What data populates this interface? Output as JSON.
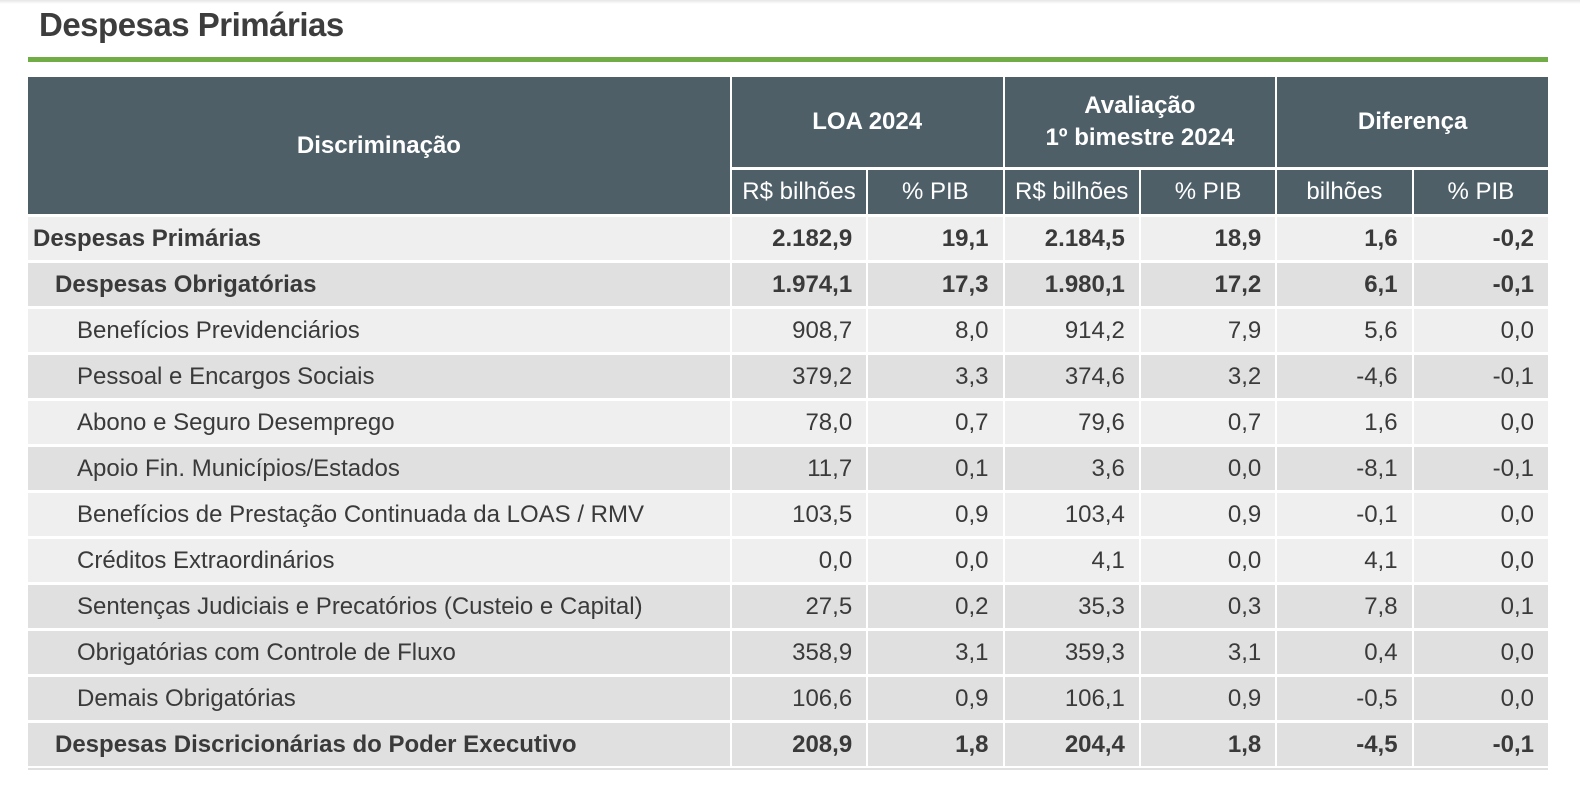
{
  "page": {
    "title": "Despesas Primárias",
    "accent_color": "#71ad47",
    "header_color": "#4e5f68"
  },
  "table": {
    "headers": {
      "discriminacao": "Discriminação",
      "loa": "LOA 2024",
      "avaliacao_line1": "Avaliação",
      "avaliacao_line2": "1º bimestre 2024",
      "diferenca": "Diferença",
      "sub": [
        "R$ bilhões",
        "% PIB",
        "R$ bilhões",
        "% PIB",
        "bilhões",
        "% PIB"
      ]
    },
    "rows": [
      {
        "label": "Despesas Primárias",
        "level": 0,
        "bold": true,
        "shade": "light",
        "values": [
          "2.182,9",
          "19,1",
          "2.184,5",
          "18,9",
          "1,6",
          "-0,2"
        ]
      },
      {
        "label": "Despesas Obrigatórias",
        "level": 1,
        "bold": true,
        "shade": "dark",
        "values": [
          "1.974,1",
          "17,3",
          "1.980,1",
          "17,2",
          "6,1",
          "-0,1"
        ]
      },
      {
        "label": "Benefícios Previdenciários",
        "level": 2,
        "bold": false,
        "shade": "light",
        "values": [
          "908,7",
          "8,0",
          "914,2",
          "7,9",
          "5,6",
          "0,0"
        ]
      },
      {
        "label": "Pessoal e Encargos Sociais",
        "level": 2,
        "bold": false,
        "shade": "dark",
        "values": [
          "379,2",
          "3,3",
          "374,6",
          "3,2",
          "-4,6",
          "-0,1"
        ]
      },
      {
        "label": "Abono e Seguro Desemprego",
        "level": 2,
        "bold": false,
        "shade": "light",
        "values": [
          "78,0",
          "0,7",
          "79,6",
          "0,7",
          "1,6",
          "0,0"
        ]
      },
      {
        "label": "Apoio Fin. Municípios/Estados",
        "level": 2,
        "bold": false,
        "shade": "dark",
        "values": [
          "11,7",
          "0,1",
          "3,6",
          "0,0",
          "-8,1",
          "-0,1"
        ]
      },
      {
        "label": "Benefícios de Prestação Continuada da LOAS / RMV",
        "level": 2,
        "bold": false,
        "shade": "light",
        "values": [
          "103,5",
          "0,9",
          "103,4",
          "0,9",
          "-0,1",
          "0,0"
        ]
      },
      {
        "label": "Créditos Extraordinários",
        "level": 2,
        "bold": false,
        "shade": "light",
        "values": [
          "0,0",
          "0,0",
          "4,1",
          "0,0",
          "4,1",
          "0,0"
        ]
      },
      {
        "label": "Sentenças Judiciais e Precatórios (Custeio e Capital)",
        "level": 2,
        "bold": false,
        "shade": "dark",
        "values": [
          "27,5",
          "0,2",
          "35,3",
          "0,3",
          "7,8",
          "0,1"
        ]
      },
      {
        "label": "Obrigatórias com Controle de Fluxo",
        "level": 2,
        "bold": false,
        "shade": "dark",
        "values": [
          "358,9",
          "3,1",
          "359,3",
          "3,1",
          "0,4",
          "0,0"
        ]
      },
      {
        "label": "Demais Obrigatórias",
        "level": 2,
        "bold": false,
        "shade": "dark",
        "values": [
          "106,6",
          "0,9",
          "106,1",
          "0,9",
          "-0,5",
          "0,0"
        ]
      },
      {
        "label": "Despesas Discricionárias do Poder Executivo",
        "level": 1,
        "bold": true,
        "shade": "dark",
        "values": [
          "208,9",
          "1,8",
          "204,4",
          "1,8",
          "-4,5",
          "-0,1"
        ]
      }
    ]
  }
}
